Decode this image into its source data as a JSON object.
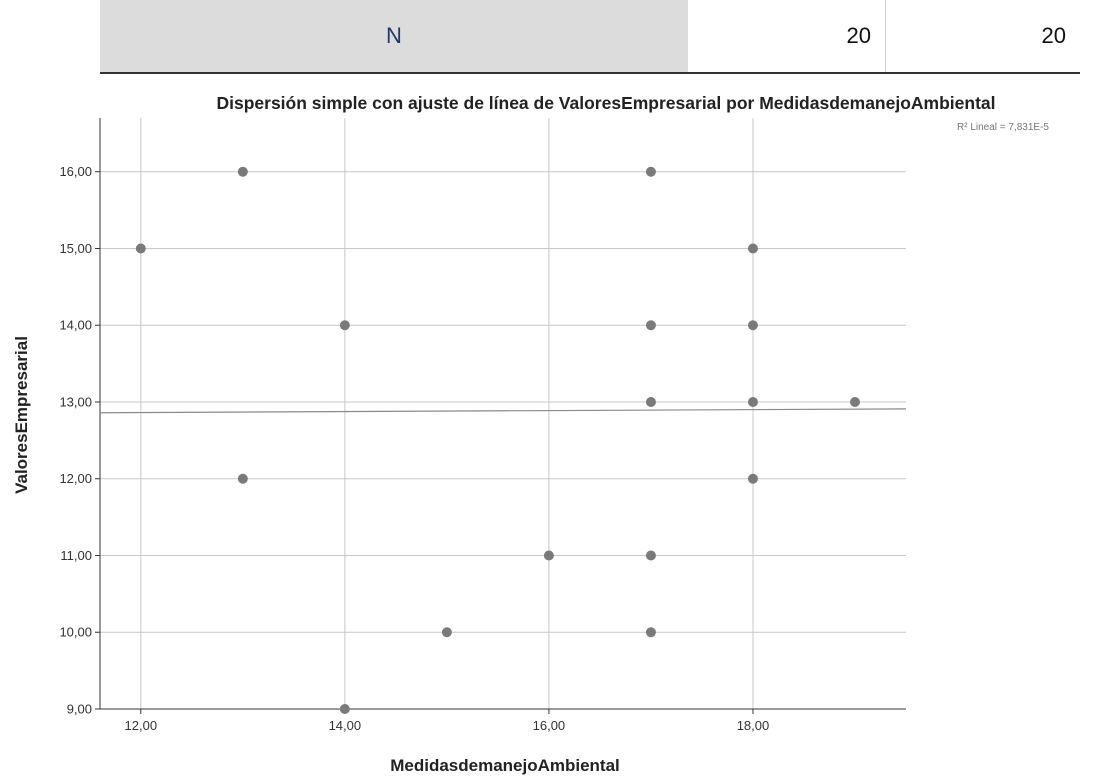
{
  "table": {
    "row_label": "N",
    "values": [
      "20",
      "20"
    ]
  },
  "chart_data": {
    "type": "scatter",
    "title": "Dispersión simple con ajuste de línea de ValoresEmpresarial por MedidasdemanejoAmbiental",
    "xlabel": "MedidasdemanejoAmbiental",
    "ylabel": "ValoresEmpresarial",
    "xlim": [
      11.6,
      19.5
    ],
    "ylim": [
      9.0,
      16.7
    ],
    "x_ticks": [
      "12,00",
      "14,00",
      "16,00",
      "18,00"
    ],
    "x_tick_values": [
      12,
      14,
      16,
      18
    ],
    "y_ticks": [
      "9,00",
      "10,00",
      "11,00",
      "12,00",
      "13,00",
      "14,00",
      "15,00",
      "16,00"
    ],
    "y_tick_values": [
      9,
      10,
      11,
      12,
      13,
      14,
      15,
      16
    ],
    "grid": true,
    "fit_line": {
      "x": [
        11.6,
        19.5
      ],
      "y": [
        12.86,
        12.91
      ]
    },
    "annotation": "R² Lineal = 7,831E-5",
    "points": [
      {
        "x": 12,
        "y": 15
      },
      {
        "x": 13,
        "y": 16
      },
      {
        "x": 13,
        "y": 12
      },
      {
        "x": 14,
        "y": 14
      },
      {
        "x": 14,
        "y": 9
      },
      {
        "x": 15,
        "y": 10
      },
      {
        "x": 16,
        "y": 11
      },
      {
        "x": 17,
        "y": 16
      },
      {
        "x": 17,
        "y": 14
      },
      {
        "x": 17,
        "y": 13
      },
      {
        "x": 17,
        "y": 11
      },
      {
        "x": 17,
        "y": 10
      },
      {
        "x": 18,
        "y": 15
      },
      {
        "x": 18,
        "y": 14
      },
      {
        "x": 18,
        "y": 13
      },
      {
        "x": 18,
        "y": 12
      },
      {
        "x": 19,
        "y": 13
      }
    ],
    "colors": {
      "point": "#7a7a7a",
      "grid": "#c8c8c8",
      "axis": "#333333",
      "fit": "#8a8a8a"
    }
  }
}
